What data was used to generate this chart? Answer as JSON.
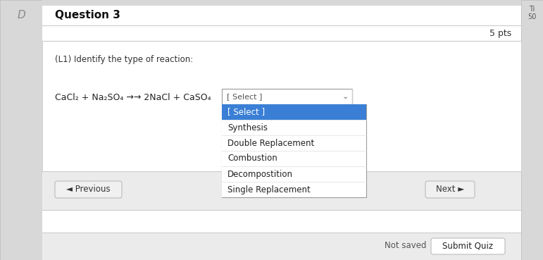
{
  "bg_color": "#dcdcdc",
  "white": "#ffffff",
  "title": "Question 3",
  "pts_label": "5 pts",
  "question_label": "(L1) Identify the type of reaction:",
  "equation": "CaCl₂ + Na₂SO₄ →→ 2NaCl + CaSO₄",
  "select_label": "[ Select ]",
  "dropdown_items": [
    "[ Select ]",
    "Synthesis",
    "Double Replacement",
    "Combustion",
    "Decompostition",
    "Single Replacement"
  ],
  "selected_item_index": 0,
  "selected_color": "#3a7fd5",
  "selected_text_color": "#ffffff",
  "normal_text_color": "#222222",
  "dropdown_bg": "#ffffff",
  "button_bg": "#f0f0f0",
  "button_border": "#bbbbbb",
  "prev_label": "◄ Previous",
  "next_label": "Next ►",
  "not_saved_label": "Not saved",
  "submit_label": "Submit Quiz",
  "header_bg": "#e8e8e8",
  "side_label": "Ti",
  "side_sub": "50",
  "content_bg": "#f0f0f0",
  "box_bg": "#ffffff",
  "bottom_bar_bg": "#e8e8e8",
  "d_color": "#888888",
  "d_label": "D"
}
